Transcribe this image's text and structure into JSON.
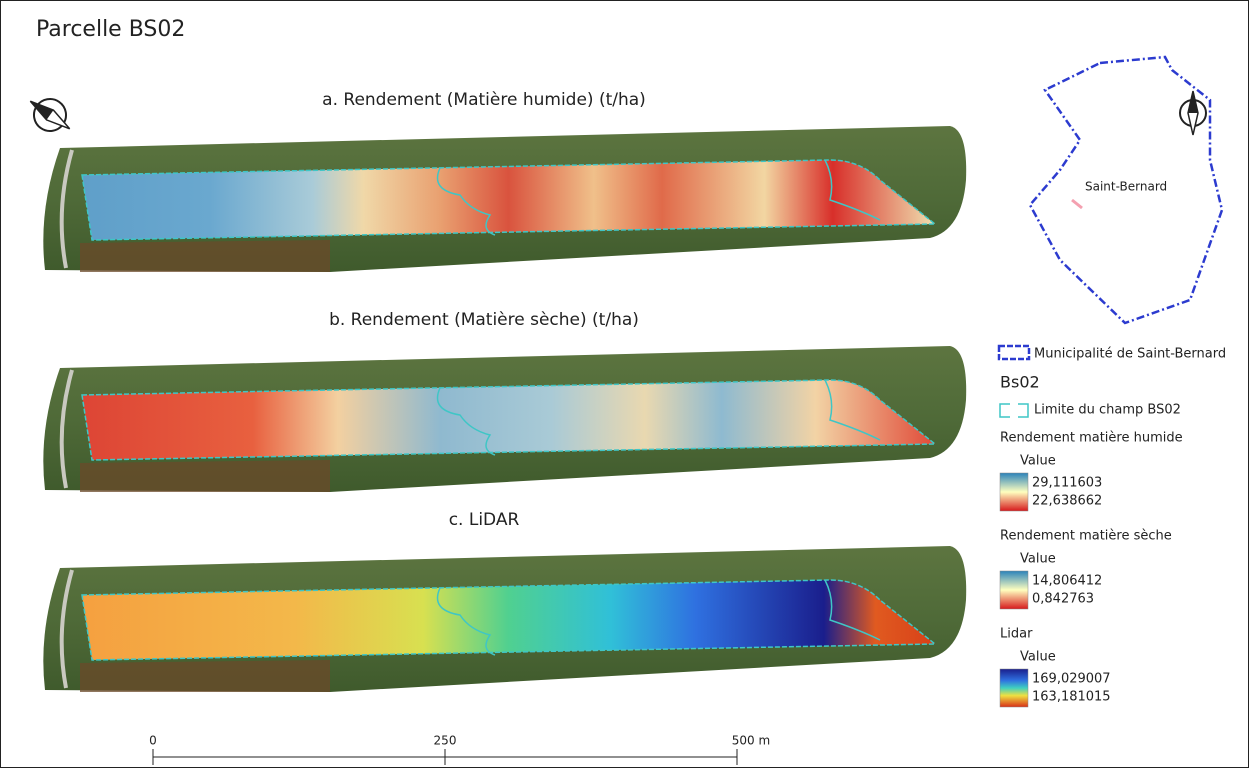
{
  "title": "Parcelle BS02",
  "panels": [
    {
      "title": "a. Rendement (Matière humide) (t/ha)"
    },
    {
      "title": "b. Rendement (Matière sèche) (t/ha)"
    },
    {
      "title": "c. LiDAR"
    }
  ],
  "inset": {
    "label": "Saint-Bernard"
  },
  "legend": {
    "municipality": "Municipalité de Saint-Bernard",
    "group": "Bs02",
    "field_limit": "Limite du champ BS02",
    "layers": [
      {
        "name": "Rendement matière humide",
        "sublabel": "Value",
        "max": "29,111603",
        "min": "22,638662"
      },
      {
        "name": "Rendement matière sèche",
        "sublabel": "Value",
        "max": "14,806412",
        "min": "0,842763"
      },
      {
        "name": "Lidar",
        "sublabel": "Value",
        "max": "169,029007",
        "min": "163,181015"
      }
    ]
  },
  "scale_bar": {
    "ticks": [
      0,
      250,
      {
        "value": 500,
        "label": "500 m"
      }
    ]
  }
}
